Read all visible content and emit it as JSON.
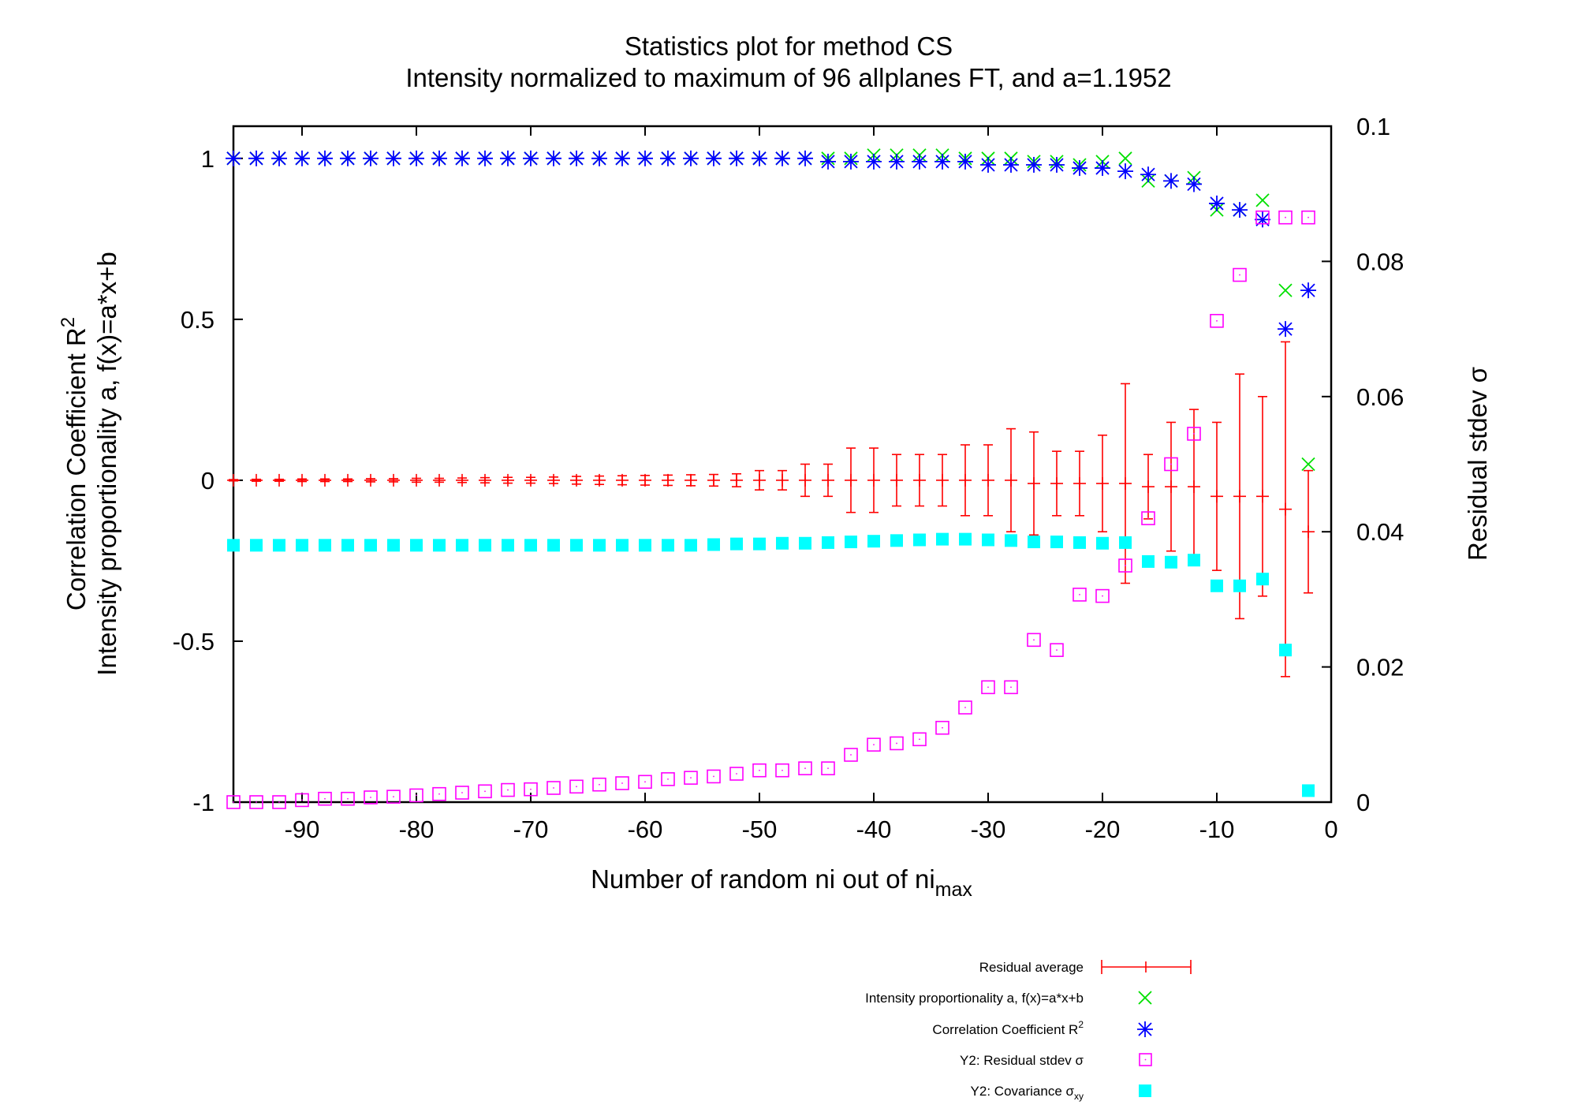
{
  "chart_data": {
    "type": "scatter",
    "title": "Statistics plot for method CS",
    "subtitle": "Intensity normalized to maximum of 96 allplanes FT, and a=1.1952",
    "xlabel": "Number of random ni out of ni",
    "xlabel_sub": "max",
    "ylabel_line1": "Correlation Coefficient R",
    "ylabel_line1_sup": "2",
    "ylabel_line2": "Intensity proportionality a, f(x)=a*x+b",
    "y2label": "Residual stdev σ",
    "xlim": [
      -96,
      0
    ],
    "ylim": [
      -1,
      1.1
    ],
    "y2lim": [
      0,
      0.1
    ],
    "grid": false,
    "legend_position": "bottom-right",
    "x_ticks": [
      "-90",
      "-80",
      "-70",
      "-60",
      "-50",
      "-40",
      "-30",
      "-20",
      "-10",
      "0"
    ],
    "y_ticks": [
      "-1",
      "-0.5",
      "0",
      "0.5",
      "1"
    ],
    "y2_ticks": [
      "0",
      "0.02",
      "0.04",
      "0.06",
      "0.08",
      "0.1"
    ],
    "x": [
      -96,
      -94,
      -92,
      -90,
      -88,
      -86,
      -84,
      -82,
      -80,
      -78,
      -76,
      -74,
      -72,
      -70,
      -68,
      -66,
      -64,
      -62,
      -60,
      -58,
      -56,
      -54,
      -52,
      -50,
      -48,
      -46,
      -44,
      -42,
      -40,
      -38,
      -36,
      -34,
      -32,
      -30,
      -28,
      -26,
      -24,
      -22,
      -20,
      -18,
      -16,
      -14,
      -12,
      -10,
      -8,
      -6,
      -4,
      -2
    ],
    "series": [
      {
        "name": "Residual average",
        "axis": "y",
        "color": "#ff0000",
        "marker": "plus-errorbar",
        "values": [
          0,
          0,
          0,
          0,
          0,
          0,
          0,
          0,
          0,
          0,
          0,
          0,
          0,
          0,
          0,
          0,
          0,
          0,
          0,
          0,
          0,
          0,
          0,
          0,
          0,
          0,
          0,
          0,
          0,
          0,
          0,
          0,
          0,
          0,
          0,
          -0.01,
          -0.01,
          -0.01,
          -0.01,
          -0.01,
          -0.02,
          -0.02,
          -0.02,
          -0.05,
          -0.05,
          -0.05,
          -0.09,
          -0.16
        ],
        "errors": [
          0.002,
          0.003,
          0.003,
          0.004,
          0.004,
          0.004,
          0.005,
          0.005,
          0.006,
          0.006,
          0.007,
          0.008,
          0.009,
          0.009,
          0.01,
          0.012,
          0.013,
          0.014,
          0.015,
          0.016,
          0.017,
          0.018,
          0.02,
          0.03,
          0.03,
          0.05,
          0.05,
          0.1,
          0.1,
          0.08,
          0.08,
          0.08,
          0.11,
          0.11,
          0.16,
          0.16,
          0.1,
          0.1,
          0.15,
          0.31,
          0.1,
          0.2,
          0.24,
          0.23,
          0.38,
          0.31,
          0.52,
          0.19
        ]
      },
      {
        "name": "Intensity proportionality a, f(x)=a*x+b",
        "axis": "y",
        "color": "#00e000",
        "marker": "x",
        "values": [
          1,
          1,
          1,
          1,
          1,
          1,
          1,
          1,
          1,
          1,
          1,
          1,
          1,
          1,
          1,
          1,
          1,
          1,
          1,
          1,
          1,
          1,
          1,
          1,
          1,
          1,
          1,
          1,
          1.01,
          1.01,
          1.01,
          1.01,
          1.0,
          1.0,
          1.0,
          0.99,
          0.99,
          0.98,
          0.99,
          1.0,
          0.93,
          0.93,
          0.94,
          0.84,
          0.84,
          0.87,
          0.59,
          0.05
        ]
      },
      {
        "name": "Correlation Coefficient R",
        "name_sup": "2",
        "axis": "y",
        "color": "#0000ff",
        "marker": "star",
        "values": [
          1,
          1,
          1,
          1,
          1,
          1,
          1,
          1,
          1,
          1,
          1,
          1,
          1,
          1,
          1,
          1,
          1,
          1,
          1,
          1,
          1,
          1,
          1,
          1,
          1,
          1,
          0.99,
          0.99,
          0.99,
          0.99,
          0.99,
          0.99,
          0.99,
          0.98,
          0.98,
          0.98,
          0.98,
          0.97,
          0.97,
          0.96,
          0.95,
          0.93,
          0.92,
          0.86,
          0.84,
          0.81,
          0.47,
          0.59
        ]
      },
      {
        "name": "Y2: Residual stdev σ",
        "axis": "y2",
        "color": "#ff00ff",
        "marker": "open-square",
        "values": [
          0.0,
          0.0,
          0.0,
          0.0003,
          0.0005,
          0.0005,
          0.0007,
          0.0008,
          0.001,
          0.0012,
          0.0014,
          0.0016,
          0.0018,
          0.0019,
          0.0021,
          0.0023,
          0.0026,
          0.0028,
          0.003,
          0.0034,
          0.0036,
          0.0038,
          0.0042,
          0.0047,
          0.0047,
          0.005,
          0.005,
          0.007,
          0.0085,
          0.0087,
          0.0093,
          0.011,
          0.014,
          0.017,
          0.017,
          0.024,
          0.0225,
          0.0307,
          0.0305,
          0.035,
          0.042,
          0.05,
          0.0545,
          0.0712,
          0.078,
          0.0865,
          0.0865,
          0.0865
        ]
      },
      {
        "name": "Y2: Covariance σ",
        "name_sub": "xy",
        "axis": "y2",
        "color": "#00ffff",
        "marker": "filled-square",
        "values": [
          0.038,
          0.038,
          0.038,
          0.038,
          0.038,
          0.038,
          0.038,
          0.038,
          0.038,
          0.038,
          0.038,
          0.038,
          0.038,
          0.038,
          0.038,
          0.038,
          0.038,
          0.038,
          0.038,
          0.038,
          0.038,
          0.0381,
          0.0382,
          0.0382,
          0.0383,
          0.0383,
          0.0384,
          0.0385,
          0.0386,
          0.0387,
          0.0388,
          0.0389,
          0.0389,
          0.0388,
          0.0387,
          0.0385,
          0.0385,
          0.0384,
          0.0383,
          0.0384,
          0.0356,
          0.0355,
          0.0358,
          0.032,
          0.032,
          0.033,
          0.0225,
          0.0017
        ]
      }
    ]
  }
}
